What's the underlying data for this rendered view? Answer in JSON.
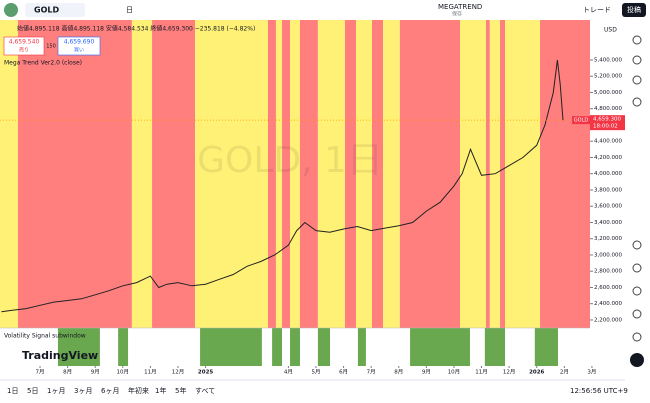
{
  "toolbar": {
    "symbol": "GOLD",
    "interval": "日",
    "layout": "MEGATREND",
    "save": "保存",
    "trade": "トレード",
    "publish": "投稿"
  },
  "legend": {
    "ohlc": "始値4,895.118 高値4,895.118 安値4,584.534 終値4,659.300 −235.818 (−4.82%)",
    "sell_price": "4,659.540",
    "sell": "売り",
    "spread": "150",
    "buy_price": "4,659.690",
    "buy": "買い",
    "indicator": "Mega Trend Ver2.0 (close)"
  },
  "watermark": "GOLD, 1日",
  "chart_data": {
    "type": "line",
    "currency": "USD",
    "color": "#222222",
    "x": [
      -1.4,
      -1,
      -0.5,
      0,
      0.5,
      1,
      1.5,
      2,
      2.5,
      3,
      3.5,
      4,
      4.3,
      4.6,
      5,
      5.5,
      6,
      6.5,
      7,
      7.5,
      8,
      8.5,
      9,
      9.3,
      9.6,
      10,
      10.5,
      11,
      11.5,
      12,
      12.5,
      13,
      13.5,
      14,
      14.5,
      15,
      15.3,
      15.6,
      16,
      16.5,
      17,
      17.5,
      18,
      18.3,
      18.6,
      18.75,
      18.85,
      18.95
    ],
    "values": [
      2300,
      2320,
      2340,
      2380,
      2420,
      2440,
      2460,
      2510,
      2560,
      2620,
      2660,
      2740,
      2600,
      2640,
      2660,
      2620,
      2640,
      2700,
      2760,
      2860,
      2920,
      3000,
      3120,
      3300,
      3400,
      3300,
      3280,
      3320,
      3350,
      3300,
      3330,
      3360,
      3400,
      3540,
      3650,
      3850,
      4000,
      4300,
      3980,
      4000,
      4100,
      4200,
      4350,
      4600,
      5000,
      5400,
      5100,
      4659
    ],
    "xlim": [
      -1.45,
      19.93
    ],
    "ylim": [
      2101,
      5892
    ],
    "xticks": [
      {
        "value": 0,
        "label": "7月"
      },
      {
        "value": 1,
        "label": "8月"
      },
      {
        "value": 2,
        "label": "9月"
      },
      {
        "value": 3,
        "label": "10月"
      },
      {
        "value": 4,
        "label": "11月"
      },
      {
        "value": 5,
        "label": "12月"
      },
      {
        "value": 6,
        "label": "2025"
      },
      {
        "value": 9,
        "label": "4月"
      },
      {
        "value": 10,
        "label": "5月"
      },
      {
        "value": 11,
        "label": "6月"
      },
      {
        "value": 12,
        "label": "7月"
      },
      {
        "value": 13,
        "label": "8月"
      },
      {
        "value": 14,
        "label": "9月"
      },
      {
        "value": 15,
        "label": "10月"
      },
      {
        "value": 16,
        "label": "11月"
      },
      {
        "value": 17,
        "label": "12月"
      },
      {
        "value": 18,
        "label": "2026"
      },
      {
        "value": 19,
        "label": "2月"
      },
      {
        "value": 20,
        "label": "3月"
      }
    ],
    "yticks": [
      {
        "value": 2200,
        "label": "2,200.000"
      },
      {
        "value": 2400,
        "label": "2,400.000"
      },
      {
        "value": 2600,
        "label": "2,600.000"
      },
      {
        "value": 2800,
        "label": "2,800.000"
      },
      {
        "value": 3000,
        "label": "3,000.000"
      },
      {
        "value": 3200,
        "label": "3,200.000"
      },
      {
        "value": 3400,
        "label": "3,400.000"
      },
      {
        "value": 3600,
        "label": "3,600.000"
      },
      {
        "value": 3800,
        "label": "3,800.000"
      },
      {
        "value": 4000,
        "label": "4,000.000"
      },
      {
        "value": 4200,
        "label": "4,200.000"
      },
      {
        "value": 4400,
        "label": "4,400.000"
      },
      {
        "value": 4600,
        "label": "4,600.000"
      },
      {
        "value": 4800,
        "label": "4,800.000"
      },
      {
        "value": 5000,
        "label": "5,000.000"
      },
      {
        "value": 5200,
        "label": "5,200.000"
      },
      {
        "value": 5400,
        "label": "5,400.000"
      }
    ],
    "last": {
      "value": 4659.3,
      "label": "4,659.300",
      "time": "18:00:02",
      "tag": "GOLD",
      "color": "#f23645"
    },
    "zones": [
      {
        "start": -1.45,
        "end": -0.8,
        "color": "#fff176"
      },
      {
        "start": -0.8,
        "end": 3.33,
        "color": "#ff7f7f"
      },
      {
        "start": 3.33,
        "end": 4.06,
        "color": "#fff176"
      },
      {
        "start": 4.06,
        "end": 5.62,
        "color": "#ff7f7f"
      },
      {
        "start": 5.62,
        "end": 8.26,
        "color": "#fff176"
      },
      {
        "start": 8.26,
        "end": 8.55,
        "color": "#ff7f7f"
      },
      {
        "start": 8.55,
        "end": 8.77,
        "color": "#fff176"
      },
      {
        "start": 8.77,
        "end": 9.06,
        "color": "#ff7f7f"
      },
      {
        "start": 9.06,
        "end": 9.42,
        "color": "#fff176"
      },
      {
        "start": 9.42,
        "end": 10.07,
        "color": "#ff7f7f"
      },
      {
        "start": 10.07,
        "end": 11.05,
        "color": "#fff176"
      },
      {
        "start": 11.05,
        "end": 11.45,
        "color": "#ff7f7f"
      },
      {
        "start": 11.45,
        "end": 12.03,
        "color": "#fff176"
      },
      {
        "start": 12.03,
        "end": 12.43,
        "color": "#ff7f7f"
      },
      {
        "start": 12.43,
        "end": 13.04,
        "color": "#fff176"
      },
      {
        "start": 13.04,
        "end": 15.22,
        "color": "#ff7f7f"
      },
      {
        "start": 15.22,
        "end": 16.16,
        "color": "#fff176"
      },
      {
        "start": 16.16,
        "end": 16.3,
        "color": "#ff7f7f"
      },
      {
        "start": 16.3,
        "end": 16.67,
        "color": "#fff176"
      },
      {
        "start": 16.67,
        "end": 16.85,
        "color": "#ff7f7f"
      },
      {
        "start": 16.85,
        "end": 18.12,
        "color": "#fff176"
      },
      {
        "start": 18.12,
        "end": 19.93,
        "color": "#ff7f7f"
      }
    ],
    "subwindow": {
      "title": "Volatility Signal subwindow",
      "color": "#6aa84f",
      "bars": [
        {
          "start": 0.65,
          "end": 2.17
        },
        {
          "start": 2.83,
          "end": 3.19
        },
        {
          "start": 5.8,
          "end": 8.04
        },
        {
          "start": 8.41,
          "end": 8.77
        },
        {
          "start": 9.06,
          "end": 9.42
        },
        {
          "start": 10.07,
          "end": 10.51
        },
        {
          "start": 11.52,
          "end": 11.81
        },
        {
          "start": 13.41,
          "end": 15.58
        },
        {
          "start": 16.12,
          "end": 16.85
        },
        {
          "start": 17.93,
          "end": 18.77
        }
      ]
    }
  },
  "brand": "TradingView",
  "bottom_bar": {
    "ranges": [
      "1日",
      "5日",
      "1ヶ月",
      "3ヶ月",
      "6ヶ月",
      "年初来",
      "1年",
      "5年",
      "すべて"
    ],
    "clock": "12:56:56 UTC+9"
  }
}
